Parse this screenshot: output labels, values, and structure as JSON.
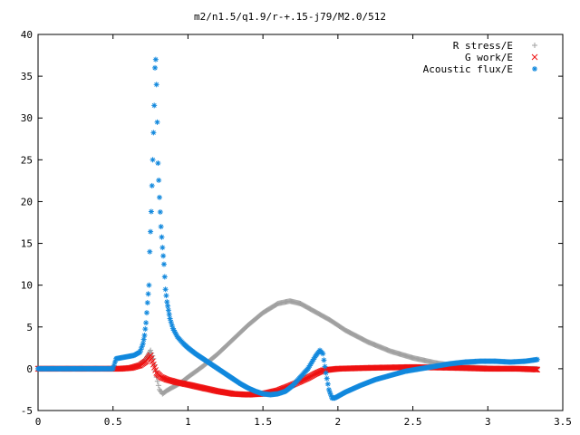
{
  "chart_data": {
    "type": "scatter",
    "title": "m2/n1.5/q1.9/r-+.15-j79/M2.0/512",
    "xlabel": "",
    "ylabel": "",
    "xlim": [
      0,
      3.5
    ],
    "ylim": [
      -5,
      40
    ],
    "xticks": [
      "0",
      "0.5",
      "1",
      "1.5",
      "2",
      "2.5",
      "3",
      "3.5"
    ],
    "yticks": [
      "-5",
      "0",
      "5",
      "10",
      "15",
      "20",
      "25",
      "30",
      "35",
      "40"
    ],
    "grid": false,
    "legend_position": "top-right",
    "series": [
      {
        "name": "R stress/E",
        "marker": "+",
        "color": "#a0a0a0",
        "points": [
          [
            0.0,
            0.0
          ],
          [
            0.2,
            0.0
          ],
          [
            0.4,
            0.0
          ],
          [
            0.55,
            0.0
          ],
          [
            0.62,
            0.1
          ],
          [
            0.68,
            0.5
          ],
          [
            0.72,
            1.2
          ],
          [
            0.75,
            2.2
          ],
          [
            0.77,
            1.2
          ],
          [
            0.79,
            -1.0
          ],
          [
            0.81,
            -2.5
          ],
          [
            0.83,
            -3.0
          ],
          [
            0.86,
            -2.6
          ],
          [
            0.9,
            -2.2
          ],
          [
            0.95,
            -1.7
          ],
          [
            1.0,
            -1.0
          ],
          [
            1.1,
            0.3
          ],
          [
            1.2,
            1.8
          ],
          [
            1.3,
            3.5
          ],
          [
            1.4,
            5.2
          ],
          [
            1.5,
            6.7
          ],
          [
            1.6,
            7.8
          ],
          [
            1.68,
            8.1
          ],
          [
            1.75,
            7.8
          ],
          [
            1.85,
            6.8
          ],
          [
            1.95,
            5.8
          ],
          [
            2.05,
            4.6
          ],
          [
            2.2,
            3.2
          ],
          [
            2.35,
            2.1
          ],
          [
            2.5,
            1.3
          ],
          [
            2.65,
            0.7
          ],
          [
            2.8,
            0.3
          ],
          [
            2.95,
            0.1
          ],
          [
            3.1,
            0.0
          ],
          [
            3.2,
            0.0
          ],
          [
            3.33,
            0.0
          ]
        ]
      },
      {
        "name": "G work/E",
        "marker": "x",
        "color": "#ee1111",
        "points": [
          [
            0.0,
            0.0
          ],
          [
            0.2,
            0.0
          ],
          [
            0.4,
            0.0
          ],
          [
            0.55,
            0.0
          ],
          [
            0.62,
            0.1
          ],
          [
            0.68,
            0.4
          ],
          [
            0.72,
            0.9
          ],
          [
            0.75,
            1.6
          ],
          [
            0.77,
            0.5
          ],
          [
            0.79,
            -0.5
          ],
          [
            0.82,
            -1.0
          ],
          [
            0.86,
            -1.3
          ],
          [
            0.92,
            -1.6
          ],
          [
            1.0,
            -1.9
          ],
          [
            1.1,
            -2.3
          ],
          [
            1.2,
            -2.7
          ],
          [
            1.3,
            -3.0
          ],
          [
            1.4,
            -3.1
          ],
          [
            1.5,
            -3.0
          ],
          [
            1.6,
            -2.6
          ],
          [
            1.7,
            -1.9
          ],
          [
            1.8,
            -1.1
          ],
          [
            1.85,
            -0.6
          ],
          [
            1.9,
            -0.2
          ],
          [
            2.0,
            0.0
          ],
          [
            2.2,
            0.1
          ],
          [
            2.5,
            0.2
          ],
          [
            2.8,
            0.1
          ],
          [
            3.0,
            0.0
          ],
          [
            3.2,
            0.0
          ],
          [
            3.33,
            -0.1
          ]
        ]
      },
      {
        "name": "Acoustic flux/E",
        "marker": "*",
        "color": "#1188dd",
        "points": [
          [
            0.0,
            0.0
          ],
          [
            0.2,
            0.0
          ],
          [
            0.4,
            0.0
          ],
          [
            0.5,
            0.0
          ],
          [
            0.52,
            1.2
          ],
          [
            0.58,
            1.4
          ],
          [
            0.64,
            1.6
          ],
          [
            0.68,
            2.0
          ],
          [
            0.7,
            3.0
          ],
          [
            0.71,
            4.0
          ],
          [
            0.72,
            5.5
          ],
          [
            0.73,
            7.9
          ],
          [
            0.74,
            10.0
          ],
          [
            0.745,
            14.0
          ],
          [
            0.755,
            18.8
          ],
          [
            0.765,
            25.0
          ],
          [
            0.775,
            31.5
          ],
          [
            0.78,
            36.0
          ],
          [
            0.785,
            37.0
          ],
          [
            0.79,
            34.0
          ],
          [
            0.795,
            29.5
          ],
          [
            0.8,
            24.6
          ],
          [
            0.81,
            20.5
          ],
          [
            0.82,
            17.0
          ],
          [
            0.83,
            14.5
          ],
          [
            0.84,
            12.5
          ],
          [
            0.845,
            11.0
          ],
          [
            0.85,
            9.5
          ],
          [
            0.86,
            8.0
          ],
          [
            0.87,
            7.0
          ],
          [
            0.88,
            6.0
          ],
          [
            0.9,
            4.8
          ],
          [
            0.93,
            3.8
          ],
          [
            0.97,
            3.0
          ],
          [
            1.0,
            2.5
          ],
          [
            1.05,
            1.8
          ],
          [
            1.1,
            1.2
          ],
          [
            1.15,
            0.6
          ],
          [
            1.2,
            0.0
          ],
          [
            1.25,
            -0.6
          ],
          [
            1.3,
            -1.2
          ],
          [
            1.35,
            -1.8
          ],
          [
            1.4,
            -2.3
          ],
          [
            1.45,
            -2.7
          ],
          [
            1.5,
            -3.0
          ],
          [
            1.55,
            -3.1
          ],
          [
            1.6,
            -3.0
          ],
          [
            1.65,
            -2.7
          ],
          [
            1.7,
            -2.0
          ],
          [
            1.75,
            -1.0
          ],
          [
            1.8,
            0.0
          ],
          [
            1.85,
            1.5
          ],
          [
            1.88,
            2.2
          ],
          [
            1.9,
            1.8
          ],
          [
            1.92,
            -0.5
          ],
          [
            1.94,
            -2.5
          ],
          [
            1.96,
            -3.5
          ],
          [
            1.98,
            -3.5
          ],
          [
            2.05,
            -2.8
          ],
          [
            2.15,
            -2.0
          ],
          [
            2.25,
            -1.3
          ],
          [
            2.35,
            -0.8
          ],
          [
            2.45,
            -0.3
          ],
          [
            2.55,
            0.0
          ],
          [
            2.65,
            0.3
          ],
          [
            2.75,
            0.6
          ],
          [
            2.85,
            0.8
          ],
          [
            2.95,
            0.9
          ],
          [
            3.05,
            0.9
          ],
          [
            3.15,
            0.8
          ],
          [
            3.25,
            0.9
          ],
          [
            3.33,
            1.1
          ]
        ]
      }
    ]
  }
}
